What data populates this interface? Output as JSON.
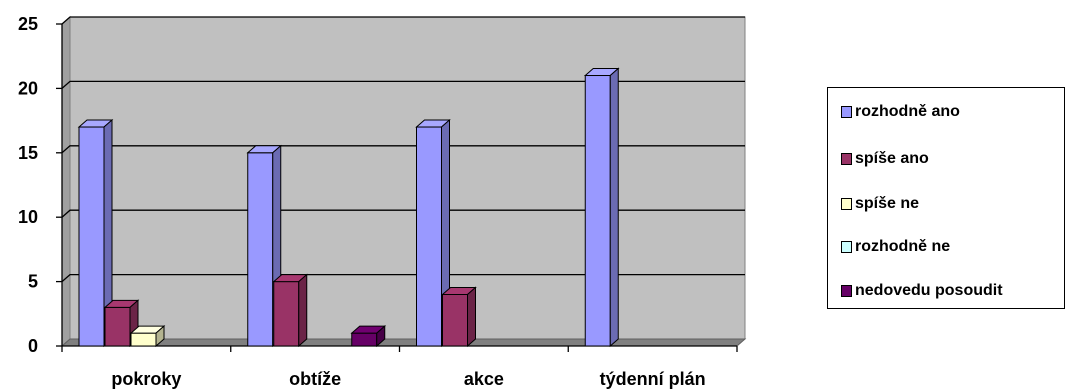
{
  "chart_data": {
    "type": "bar",
    "categories": [
      "pokroky",
      "obtíže",
      "akce",
      "týdenní plán"
    ],
    "series": [
      {
        "name": "rozhodně ano",
        "values": [
          17,
          15,
          17,
          21
        ],
        "color": "#9999ff"
      },
      {
        "name": "spíše ano",
        "values": [
          3,
          5,
          4,
          0
        ],
        "color": "#993366"
      },
      {
        "name": "spíše ne",
        "values": [
          1,
          0,
          0,
          0
        ],
        "color": "#ffffcc"
      },
      {
        "name": "rozhodně ne",
        "values": [
          0,
          0,
          0,
          0
        ],
        "color": "#ccffff"
      },
      {
        "name": "nedovedu posoudit",
        "values": [
          0,
          1,
          0,
          0
        ],
        "color": "#660066"
      }
    ],
    "ylim": [
      0,
      25
    ],
    "yticks": [
      0,
      5,
      10,
      15,
      20,
      25
    ],
    "grid": true,
    "legend_position": "right",
    "style": "3d-bar",
    "wall_color": "#c0c0c0"
  }
}
